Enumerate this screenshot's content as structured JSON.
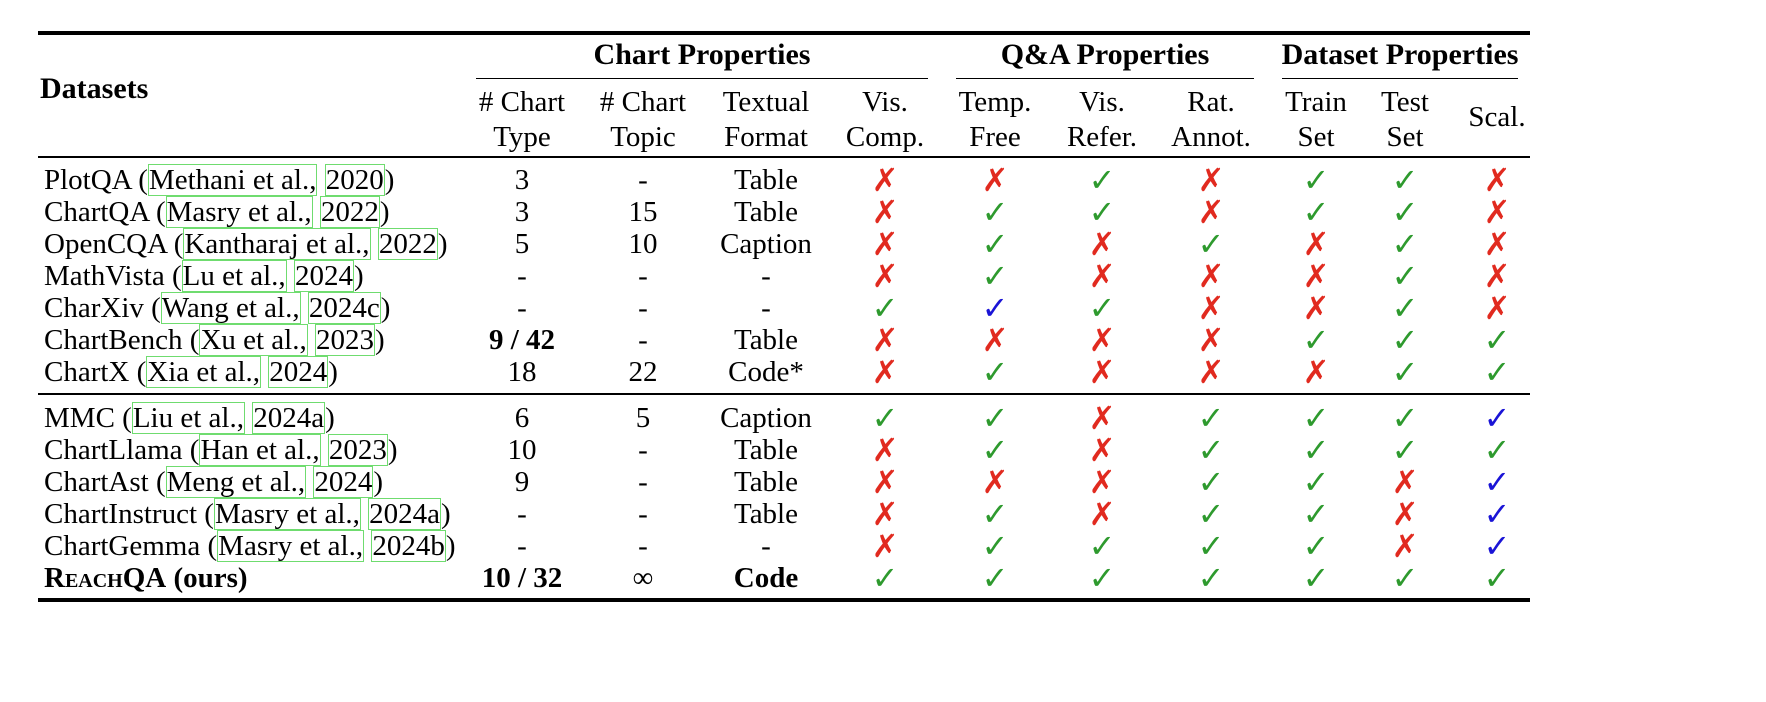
{
  "header": {
    "datasets_label": "Datasets",
    "groups": [
      {
        "label": "Chart Properties"
      },
      {
        "label": "Q&A Properties"
      },
      {
        "label": "Dataset Properties"
      }
    ],
    "columns": [
      {
        "line1": "# Chart",
        "line2": "Type"
      },
      {
        "line1": "# Chart",
        "line2": "Topic"
      },
      {
        "line1": "Textual",
        "line2": "Format"
      },
      {
        "line1": "Vis.",
        "line2": "Comp."
      },
      {
        "line1": "Temp.",
        "line2": "Free"
      },
      {
        "line1": "Vis.",
        "line2": "Refer."
      },
      {
        "line1": "Rat.",
        "line2": "Annot."
      },
      {
        "line1": "Train",
        "line2": "Set"
      },
      {
        "line1": "Test",
        "line2": "Set"
      },
      {
        "line1": "Scal.",
        "line2": ""
      }
    ]
  },
  "symbols": {
    "check": "✓",
    "cross": "✗",
    "partial": "✓"
  },
  "colors": {
    "check": "#2e9a2e",
    "cross": "#e12a1f",
    "partial": "#1a14d6",
    "citation_box": "#6fdc6f"
  },
  "rows": [
    {
      "name": "PlotQA",
      "authors": "Methani et al.,",
      "year": "2020",
      "type": "3",
      "topic": "-",
      "format": "Table",
      "marks": [
        "cross",
        "cross",
        "check",
        "cross",
        "check",
        "check",
        "cross"
      ]
    },
    {
      "name": "ChartQA",
      "authors": "Masry et al.,",
      "year": "2022",
      "type": "3",
      "topic": "15",
      "format": "Table",
      "marks": [
        "cross",
        "check",
        "check",
        "cross",
        "check",
        "check",
        "cross"
      ]
    },
    {
      "name": "OpenCQA",
      "authors": "Kantharaj et al.,",
      "year": "2022",
      "type": "5",
      "topic": "10",
      "format": "Caption",
      "marks": [
        "cross",
        "check",
        "cross",
        "check",
        "cross",
        "check",
        "cross"
      ]
    },
    {
      "name": "MathVista",
      "authors": "Lu et al.,",
      "year": "2024",
      "type": "-",
      "topic": "-",
      "format": "-",
      "marks": [
        "cross",
        "check",
        "cross",
        "cross",
        "cross",
        "check",
        "cross"
      ]
    },
    {
      "name": "CharXiv",
      "authors": "Wang et al.,",
      "year": "2024c",
      "type": "-",
      "topic": "-",
      "format": "-",
      "marks": [
        "check",
        "partial",
        "check",
        "cross",
        "cross",
        "check",
        "cross"
      ]
    },
    {
      "name": "ChartBench",
      "authors": "Xu et al.,",
      "year": "2023",
      "type": "9 / 42",
      "type_bold": true,
      "topic": "-",
      "format": "Table",
      "marks": [
        "cross",
        "cross",
        "cross",
        "cross",
        "check",
        "check",
        "check"
      ]
    },
    {
      "name": "ChartX",
      "authors": "Xia et al.,",
      "year": "2024",
      "type": "18",
      "topic": "22",
      "format": "Code*",
      "marks": [
        "cross",
        "check",
        "cross",
        "cross",
        "cross",
        "check",
        "check"
      ]
    },
    {
      "name": "MMC",
      "authors": "Liu et al.,",
      "year": "2024a",
      "type": "6",
      "topic": "5",
      "format": "Caption",
      "marks": [
        "check",
        "check",
        "cross",
        "check",
        "check",
        "check",
        "partial"
      ]
    },
    {
      "name": "ChartLlama",
      "authors": "Han et al.,",
      "year": "2023",
      "type": "10",
      "topic": "-",
      "format": "Table",
      "marks": [
        "cross",
        "check",
        "cross",
        "check",
        "check",
        "check",
        "check"
      ]
    },
    {
      "name": "ChartAst",
      "authors": "Meng et al.,",
      "year": "2024",
      "type": "9",
      "topic": "-",
      "format": "Table",
      "marks": [
        "cross",
        "cross",
        "cross",
        "check",
        "check",
        "cross",
        "partial"
      ]
    },
    {
      "name": "ChartInstruct",
      "authors": "Masry et al.,",
      "year": "2024a",
      "type": "-",
      "topic": "-",
      "format": "Table",
      "marks": [
        "cross",
        "check",
        "cross",
        "check",
        "check",
        "cross",
        "partial"
      ]
    },
    {
      "name": "ChartGemma",
      "authors": "Masry et al.,",
      "year": "2024b",
      "type": "-",
      "topic": "-",
      "format": "-",
      "marks": [
        "cross",
        "check",
        "check",
        "check",
        "check",
        "cross",
        "partial"
      ]
    }
  ],
  "ours": {
    "name": "ReachQA (ours)",
    "type": "10 / 32",
    "topic": "∞",
    "format": "Code",
    "marks": [
      "check",
      "check",
      "check",
      "check",
      "check",
      "check",
      "check"
    ]
  }
}
